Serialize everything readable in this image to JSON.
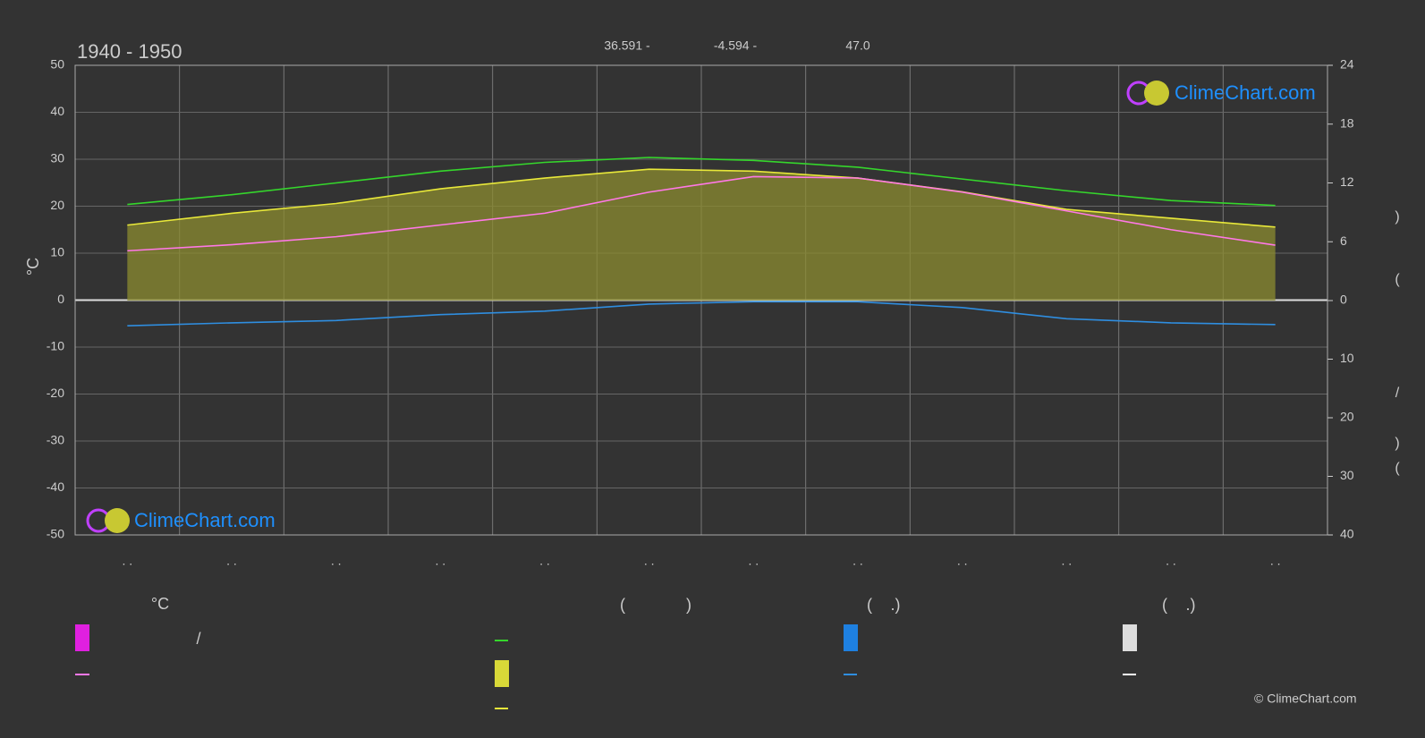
{
  "chart_data": {
    "type": "line",
    "title": "1940 - 1950",
    "header_stats": [
      "36.591 -",
      "-4.594 -",
      "47.0"
    ],
    "categories": [
      ". .",
      ". .",
      ". .",
      ". .",
      ". .",
      ". .",
      ". .",
      ". .",
      ". .",
      ". .",
      ". .",
      ". ."
    ],
    "y_label": "°C",
    "ylim": [
      -50,
      50
    ],
    "yticks": [
      -50,
      -40,
      -30,
      -20,
      -10,
      0,
      10,
      20,
      30,
      40,
      50
    ],
    "y2lim": [
      0,
      24
    ],
    "y2ticks": [
      0,
      6,
      12,
      18,
      24
    ],
    "y3lim": [
      0,
      40
    ],
    "y3ticks": [
      10,
      20,
      30,
      40
    ],
    "right_labels": [
      ")",
      "(",
      "/",
      ")",
      "("
    ],
    "grid": true,
    "series": [
      {
        "name": "",
        "color": "#35d62c",
        "axis": "y2",
        "values": [
          9.8,
          10.8,
          12.0,
          13.2,
          14.1,
          14.6,
          14.3,
          13.6,
          12.4,
          11.2,
          10.2,
          9.7
        ]
      },
      {
        "name": "",
        "color": "#e8e83a",
        "axis": "y2",
        "fill": "#8c8c30",
        "values": [
          7.7,
          8.9,
          9.9,
          11.4,
          12.5,
          13.4,
          13.2,
          12.5,
          11.1,
          9.3,
          8.4,
          7.5
        ]
      },
      {
        "name": "",
        "color": "#ff78e6",
        "axis": "y",
        "values": [
          10.5,
          11.8,
          13.5,
          16,
          18.5,
          23,
          26.3,
          26,
          23,
          19,
          15,
          11.7
        ]
      },
      {
        "name": "",
        "color": "#2f8ee0",
        "axis": "y3",
        "values": [
          4.3,
          3.8,
          3.4,
          2.4,
          1.8,
          0.6,
          0.2,
          0.2,
          1.2,
          3.1,
          3.8,
          4.1
        ]
      }
    ]
  },
  "legend": {
    "texts": [
      "°C",
      "/",
      "(",
      ")",
      "(",
      ".)",
      "(",
      ".)"
    ]
  },
  "watermark": "ClimeChart.com",
  "copyright": "© ClimeChart.com"
}
